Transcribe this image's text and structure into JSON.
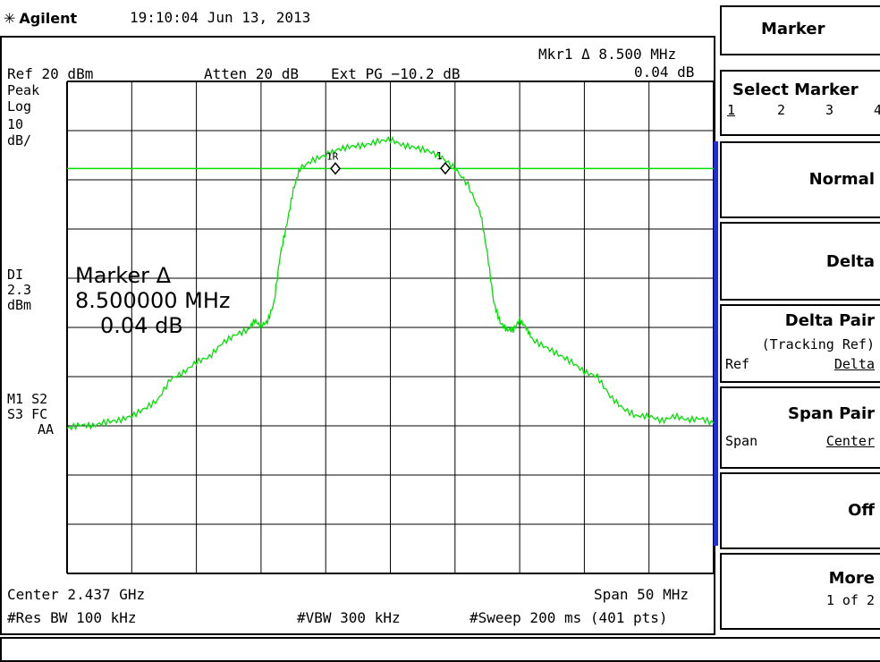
{
  "header": {
    "brand": "Agilent",
    "brand_icon": "agilent-spark-icon",
    "timestamp": "19:10:04  Jun 13, 2013"
  },
  "screen": {
    "marker_readout_line1": "Mkr1 Δ  8.500 MHz",
    "marker_readout_line2": "0.04 dB",
    "ref": "Ref 20 dBm",
    "atten": "Atten 20 dB",
    "ext_pg": "Ext PG −10.2 dB",
    "left_labels": {
      "peak": "Peak",
      "log": "Log",
      "scale_value": "10",
      "scale_unit": "dB/",
      "dl": "DI",
      "dl_value": "2.3",
      "dl_unit": "dBm",
      "m1s2": "M1  S2",
      "s3fc": "S3  FC",
      "aa": "AA"
    },
    "big_marker": {
      "title": "Marker Δ",
      "freq": "8.500000 MHz",
      "delta": "0.04 dB"
    },
    "bottom": {
      "center": "Center 2.437 GHz",
      "span": "Span 50 MHz",
      "res_bw": "#Res BW 100 kHz",
      "vbw": "#VBW 300 kHz",
      "sweep": "#Sweep 200 ms (401 pts)"
    },
    "marker_labels": {
      "m1r": "1R",
      "m1": "1"
    }
  },
  "chart_data": {
    "type": "line",
    "title": "",
    "xlabel": "",
    "ylabel": "",
    "x_unit": "MHz offset from center",
    "xlim": [
      -25,
      25
    ],
    "ylim": [
      -80,
      20
    ],
    "grid": true,
    "display_line_dbm": 2.3,
    "trace_color": "#00e000",
    "grid_color": "#000000",
    "series": [
      {
        "x": [
          -25,
          -24,
          -23,
          -22,
          -21,
          -20,
          -19,
          -18,
          -17,
          -16,
          -15,
          -14,
          -13,
          -12,
          -11,
          -10.5,
          -10,
          -9.5,
          -9,
          -8.5,
          -8,
          -7.5,
          -7,
          -6,
          -5,
          -4,
          -3,
          -2,
          -1,
          0,
          1,
          2,
          3,
          4,
          5,
          6,
          7,
          7.5,
          8,
          8.5,
          9,
          9.5,
          10,
          10.5,
          11,
          12,
          13,
          14,
          15,
          16,
          17,
          18,
          19,
          20,
          21,
          22,
          23,
          24,
          25
        ],
        "y": [
          -50.5,
          -49.8,
          -50,
          -49.2,
          -48.9,
          -48,
          -46.5,
          -44.8,
          -40.5,
          -39.2,
          -37,
          -36,
          -33.2,
          -31.5,
          -30.5,
          -28.6,
          -29.8,
          -28.8,
          -25,
          -15,
          -9,
          -2,
          2.3,
          4,
          5,
          6.2,
          6.8,
          7,
          7.8,
          8.2,
          7,
          6.5,
          5.8,
          4.5,
          2.3,
          -1,
          -7,
          -15,
          -25,
          -29,
          -30.5,
          -30.5,
          -28.5,
          -30,
          -32.5,
          -34,
          -35.5,
          -37,
          -39,
          -40,
          -44,
          -46.5,
          -48,
          -48,
          -49,
          -48,
          -48.8,
          -48.5,
          -49.5
        ]
      }
    ],
    "markers": [
      {
        "label": "1R",
        "x": -4.25,
        "y": 2.3
      },
      {
        "label": "1",
        "x": 4.25,
        "y": 2.34
      }
    ]
  },
  "softkeys": {
    "title": "Marker",
    "select_marker": {
      "label": "Select Marker",
      "options": [
        "1",
        "2",
        "3",
        "4"
      ]
    },
    "normal": "Normal",
    "delta": "Delta",
    "delta_pair": {
      "label": "Delta Pair",
      "sub": "(Tracking Ref)",
      "left": "Ref",
      "right": "Delta"
    },
    "span_pair": {
      "label": "Span Pair",
      "left": "Span",
      "right": "Center"
    },
    "off": "Off",
    "more": {
      "label": "More",
      "sub": "1 of 2"
    }
  }
}
